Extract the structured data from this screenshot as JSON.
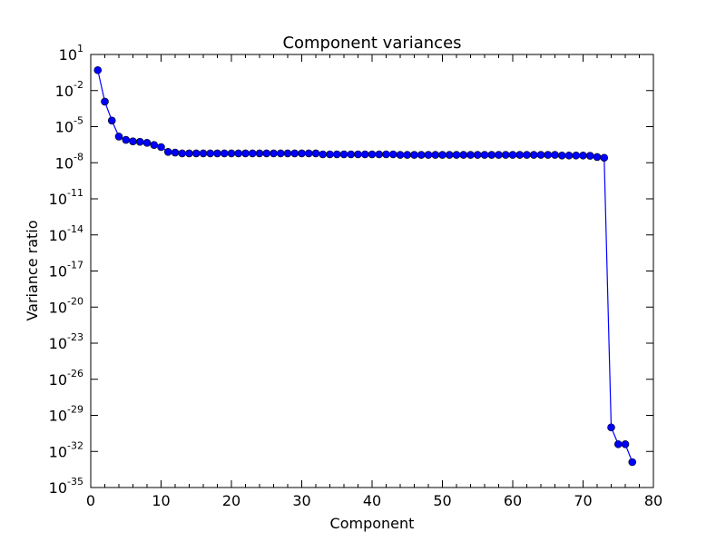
{
  "chart_data": {
    "type": "line",
    "title": "Component variances",
    "xlabel": "Component",
    "ylabel": "Variance ratio",
    "xlim": [
      0,
      80
    ],
    "ylim_exponent": [
      -35,
      1
    ],
    "yscale": "log",
    "grid": false,
    "x_ticks": [
      "0",
      "10",
      "20",
      "30",
      "40",
      "50",
      "60",
      "70",
      "80"
    ],
    "y_ticks": [
      {
        "base": "10",
        "exp": "1"
      },
      {
        "base": "10",
        "exp": "-2"
      },
      {
        "base": "10",
        "exp": "-5"
      },
      {
        "base": "10",
        "exp": "-8"
      },
      {
        "base": "10",
        "exp": "-11"
      },
      {
        "base": "10",
        "exp": "-14"
      },
      {
        "base": "10",
        "exp": "-17"
      },
      {
        "base": "10",
        "exp": "-20"
      },
      {
        "base": "10",
        "exp": "-23"
      },
      {
        "base": "10",
        "exp": "-26"
      },
      {
        "base": "10",
        "exp": "-29"
      },
      {
        "base": "10",
        "exp": "-32"
      },
      {
        "base": "10",
        "exp": "-35"
      }
    ],
    "series": [
      {
        "color": "#0000ff",
        "marker": "circle",
        "x": [
          1,
          2,
          3,
          4,
          5,
          6,
          7,
          8,
          9,
          10,
          11,
          12,
          13,
          14,
          15,
          16,
          17,
          18,
          19,
          20,
          21,
          22,
          23,
          24,
          25,
          26,
          27,
          28,
          29,
          30,
          31,
          32,
          33,
          34,
          35,
          36,
          37,
          38,
          39,
          40,
          41,
          42,
          43,
          44,
          45,
          46,
          47,
          48,
          49,
          50,
          51,
          52,
          53,
          54,
          55,
          56,
          57,
          58,
          59,
          60,
          61,
          62,
          63,
          64,
          65,
          66,
          67,
          68,
          69,
          70,
          71,
          72,
          73,
          74,
          75,
          76,
          77
        ],
        "y": [
          0.5,
          0.0012,
          3.2e-05,
          1.5e-06,
          8e-07,
          6e-07,
          5.5e-07,
          4.5e-07,
          3e-07,
          2e-07,
          8e-08,
          7e-08,
          6e-08,
          6e-08,
          6e-08,
          6e-08,
          6e-08,
          6e-08,
          6e-08,
          6e-08,
          6e-08,
          6e-08,
          6e-08,
          6e-08,
          6e-08,
          6e-08,
          6e-08,
          6e-08,
          6e-08,
          6e-08,
          6e-08,
          6e-08,
          5e-08,
          5e-08,
          5e-08,
          5e-08,
          5e-08,
          5e-08,
          5e-08,
          5e-08,
          5e-08,
          5e-08,
          5e-08,
          4.5e-08,
          4.5e-08,
          4.5e-08,
          4.5e-08,
          4.5e-08,
          4.5e-08,
          4.5e-08,
          4.5e-08,
          4.5e-08,
          4.5e-08,
          4.5e-08,
          4.5e-08,
          4.5e-08,
          4.5e-08,
          4.5e-08,
          4.5e-08,
          4.5e-08,
          4.5e-08,
          4.5e-08,
          4.5e-08,
          4.5e-08,
          4.5e-08,
          4.5e-08,
          4e-08,
          4e-08,
          4e-08,
          4e-08,
          3.8e-08,
          3e-08,
          2.6e-08,
          1e-30,
          4e-32,
          4e-32,
          1.3e-33
        ]
      }
    ]
  }
}
